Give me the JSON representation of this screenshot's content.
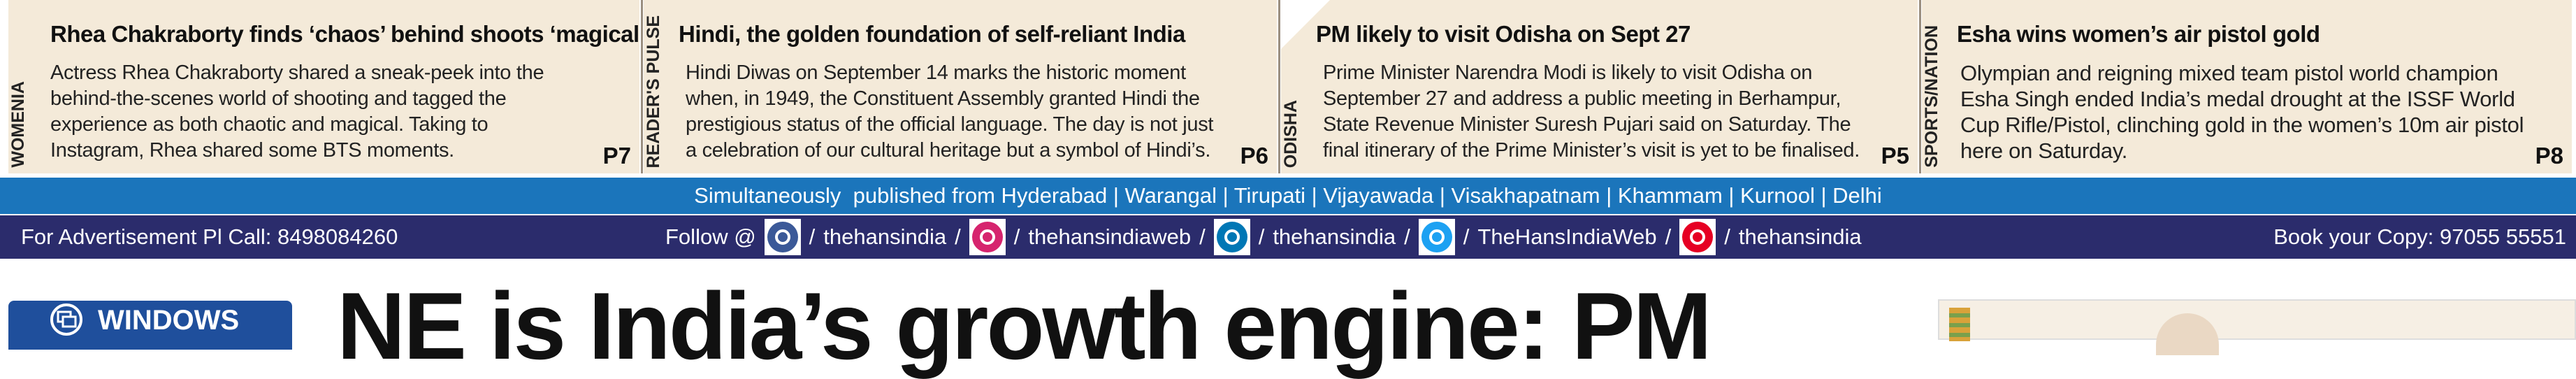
{
  "teasers": [
    {
      "section": "WOMENIA",
      "headline": "Rhea Chakraborty finds ‘chaos’ behind shoots ‘magical’",
      "body": "Actress Rhea Chakraborty shared a sneak-peek into the behind-the-scenes world of shooting and tagged the experience as both chaotic and magical. Taking to Instagram, Rhea shared some BTS moments.",
      "page": "P7"
    },
    {
      "section": "READER'S PULSE",
      "headline": "Hindi, the golden foundation of self-reliant India",
      "body": "Hindi Diwas on September 14 marks the historic moment when, in 1949, the Constituent Assembly granted Hindi the prestigious status of the official language. The day is not just a celebration of our cultural heritage but a symbol of Hindi’s.",
      "page": "P6"
    },
    {
      "section": "ODISHA",
      "headline": "PM likely to visit Odisha on Sept 27",
      "body": "Prime Minister Narendra Modi is likely to visit Odisha on September 27 and address a public meeting in Berhampur, State Revenue Minister Suresh Pujari said on Saturday. The final itinerary of the Prime Minister’s visit is yet to be finalised.",
      "page": "P5"
    },
    {
      "section": "SPORTS/NATION",
      "headline": "Esha wins women’s air pistol gold",
      "body": "Olympian and reigning mixed team pistol world champion Esha Singh ended India’s medal drought at the ISSF World Cup Rifle/Pistol, clinching gold in the women’s 10m air pistol here on Saturday.",
      "page": "P8"
    }
  ],
  "editions": "Simultaneously  published from Hyderabad | Warangal | Tirupati | Vijayawada | Visakhapatnam | Khammam | Kurnool | Delhi",
  "footer": {
    "advertisement": "For Advertisement Pl Call: 8498084260",
    "follow": "Follow @",
    "separator": "/",
    "handles": [
      "thehansindia",
      "thehansindiaweb",
      "thehansindia",
      "TheHansIndiaWeb",
      "thehansindia"
    ],
    "book_copy": "Book your Copy: 97055 55551"
  },
  "lower": {
    "badge": "WINDOWS",
    "headline": "NE is India’s growth engine: PM"
  }
}
